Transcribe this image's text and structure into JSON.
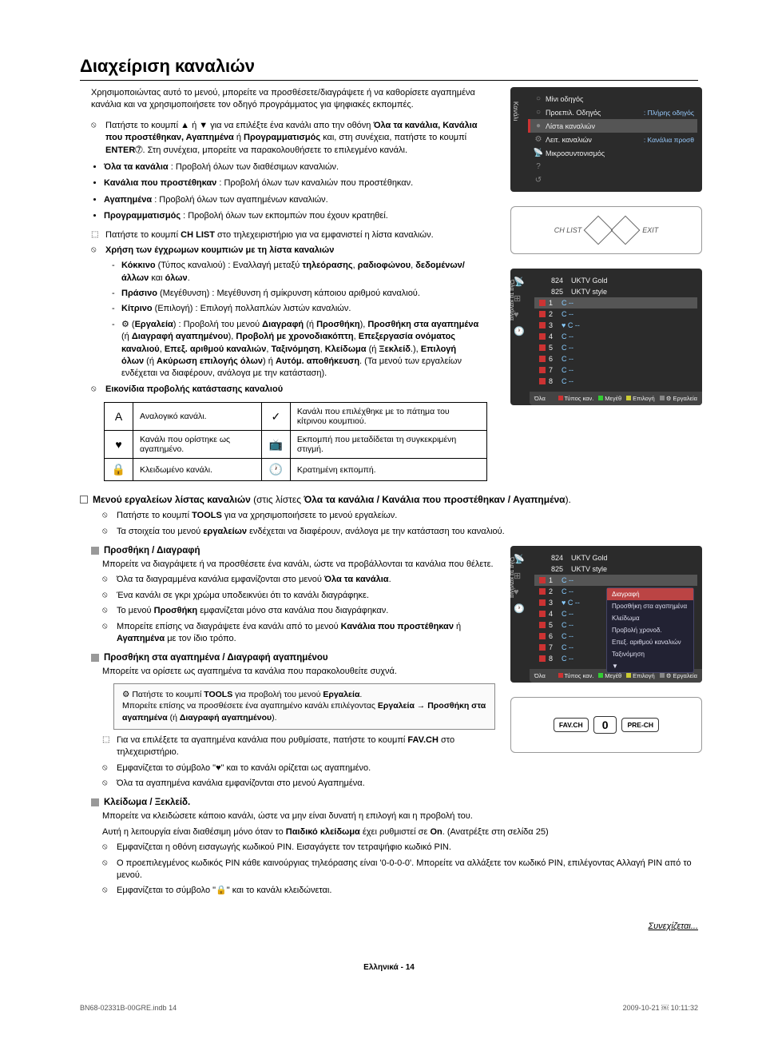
{
  "title": "Διαχείριση καναλιών",
  "intro": "Χρησιμοποιώντας αυτό το μενού, μπορείτε να προσθέσετε/διαγράψετε ή να καθορίσετε αγαπημένα κανάλια και να χρησιμοποιήσετε τον οδηγό προγράμματος για ψηφιακές εκπομπές.",
  "note1_pre": "Πατήστε το κουμπί ▲ ή ▼ για να επιλέξτε ένα κανάλι απο την οθόνη ",
  "note1_bold": "Όλα τα κανάλια, Κανάλια που προστέθηκαν, Αγαπημένα",
  "note1_mid": " ή ",
  "note1_bold2": "Προγραμματισμός",
  "note1_post": " και, στη συνέχεια, πατήστε το κουμπί ",
  "note1_bold3": "ENTER",
  "note1_end": "➆. Στη συνέχεια, μπορείτε να παρακολουθήσετε το επιλεγμένο κανάλι.",
  "bullets": [
    {
      "b": "Όλα τα κανάλια",
      "t": " : Προβολή όλων των διαθέσιμων καναλιών."
    },
    {
      "b": "Κανάλια που προστέθηκαν",
      "t": " : Προβολή όλων των καναλιών που προστέθηκαν."
    },
    {
      "b": "Αγαπημένα",
      "t": " : Προβολή όλων των αγαπημένων καναλιών."
    },
    {
      "b": "Προγραμματισμός",
      "t": " : Προβολή όλων των εκπομπών που έχουν κρατηθεί."
    }
  ],
  "chlist_note_pre": "Πατήστε το κουμπί ",
  "chlist_note_bold": "CH LIST",
  "chlist_note_post": " στο τηλεχειριστήριο για να εμφανιστεί η λίστα καναλιών.",
  "color_heading": "Χρήση των έγχρωμων κουμπιών με τη λίστα καναλιών",
  "colors": {
    "red": {
      "b": "Κόκκινο",
      "p": " (Τύπος καναλιού) : Εναλλαγή μεταξύ ",
      "b2": "τηλεόρασης",
      "m": ", ",
      "b3": "ραδιοφώνου",
      "m2": ", ",
      "b4": "δεδομένων/άλλων",
      "m3": " και ",
      "b5": "όλων",
      "e": "."
    },
    "green": {
      "b": "Πράσινο",
      "t": " (Μεγέθυνση) : Μεγέθυνση ή σμίκρυνση κάποιου αριθμού καναλιού."
    },
    "yellow": {
      "b": "Κίτρινο",
      "t": " (Επιλογή) : Επιλογή πολλαπλών λιστών καναλιών."
    },
    "tools": {
      "pre": "⚙ (",
      "b": "Εργαλεία",
      "m": ") : Προβολή του μενού ",
      "b2": "Διαγραφή",
      "m2": " (ή ",
      "b3": "Προσθήκη",
      "m3": "), ",
      "b4": "Προσθήκη στα αγαπημένα",
      "m4": " (ή ",
      "b5": "Διαγραφή αγαπημένου",
      "m5": "), ",
      "b6": "Προβολή με χρονοδιακόπτη",
      "m6": ", ",
      "b7": "Επεξεργασία ονόματος καναλιού",
      "m7": ", ",
      "b8": "Επεξ. αριθμού καναλιών",
      "m8": ", ",
      "b9": "Ταξινόμηση",
      "m9": ", ",
      "b10": "Κλείδωμα",
      "m10": " (ή ",
      "b11": "Ξεκλείδ",
      "m11": ".), ",
      "b12": "Επιλογή όλων",
      "m12": " (ή ",
      "b13": "Ακύρωση επιλογής όλων",
      "m13": ") ή ",
      "b14": "Αυτόμ. αποθήκευση",
      "e": ". (Τα μενού των εργαλείων ενδέχεται να διαφέρουν, ανάλογα με την κατάσταση)."
    }
  },
  "status_heading": "Εικονίδια προβολής κατάστασης καναλιού",
  "status_table": [
    {
      "i1": "A",
      "t1": "Αναλογικό κανάλι.",
      "i2": "✓",
      "t2": "Κανάλι που επιλέχθηκε με το πάτημα του κίτρινου κουμπιού."
    },
    {
      "i1": "♥",
      "t1": "Κανάλι που ορίστηκε ως αγαπημένο.",
      "i2": "📺",
      "t2": "Εκπομπή που μεταδίδεται τη συγκεκριμένη στιγμή."
    },
    {
      "i1": "🔒",
      "t1": "Κλειδωμένο κανάλι.",
      "i2": "🕐",
      "t2": "Κρατημένη εκπομπή."
    }
  ],
  "tools_menu_heading_pre": "Μενού εργαλείων λίστας καναλιών",
  "tools_menu_heading_post": " (στις λίστες ",
  "tools_menu_heading_bold": "Όλα τα κανάλια / Κανάλια που προστέθηκαν / Αγαπημένα",
  "tools_menu_heading_end": ").",
  "tools_note1_pre": "Πατήστε το κουμπί ",
  "tools_note1_bold": "TOOLS",
  "tools_note1_post": " για να χρησιμοποιήσετε το μενού εργαλείων.",
  "tools_note2_pre": "Τα στοιχεία του μενού ",
  "tools_note2_bold": "εργαλείων",
  "tools_note2_post": " ενδέχεται να διαφέρουν, ανάλογα με την κατάσταση του καναλιού.",
  "sec_add": {
    "title": "Προσθήκη / Διαγραφή",
    "body": "Μπορείτε να διαγράψετε ή να προσθέσετε ένα κανάλι, ώστε να προβάλλονται τα κανάλια που θέλετε.",
    "n1_pre": "Όλα τα διαγραμμένα κανάλια εμφανίζονται στο μενού ",
    "n1_bold": "Όλα τα κανάλια",
    "n1_post": ".",
    "n2": "Ένα κανάλι σε γκρι χρώμα υποδεικνύει ότι το κανάλι διαγράφηκε.",
    "n3_pre": "Το μενού ",
    "n3_bold": "Προσθήκη",
    "n3_post": " εμφανίζεται μόνο στα κανάλια που διαγράφηκαν.",
    "n4_pre": "Μπορείτε επίσης να διαγράψετε ένα κανάλι από το μενού ",
    "n4_bold": "Κανάλια που προστέθηκαν",
    "n4_mid": " ή ",
    "n4_bold2": "Αγαπημένα",
    "n4_post": " με τον ίδιο τρόπο."
  },
  "sec_fav": {
    "title": "Προσθήκη στα αγαπημένα / Διαγραφή αγαπημένου",
    "body": "Μπορείτε να ορίσετε ως αγαπημένα τα κανάλια που παρακολουθείτε συχνά.",
    "box_l1_pre": "Πατήστε το κουμπί ",
    "box_l1_bold": "TOOLS",
    "box_l1_mid": " για προβολή του μενού ",
    "box_l1_bold2": "Εργαλεία",
    "box_l1_post": ".",
    "box_l2_pre": "Μπορείτε επίσης να προσθέσετε ένα αγαπημένο κανάλι επιλέγοντας ",
    "box_l2_bold": "Εργαλεία → Προσθήκη στα αγαπημένα",
    "box_l2_mid": " (ή ",
    "box_l2_bold2": "Διαγραφή αγαπημένου",
    "box_l2_post": ").",
    "n1_pre": "Για να επιλέξετε τα αγαπημένα κανάλια που ρυθμίσατε, πατήστε το κουμπί ",
    "n1_bold": "FAV.CH",
    "n1_post": " στο τηλεχειριστήριο.",
    "n2": "Εμφανίζεται το σύμβολο \"♥\" και το κανάλι ορίζεται ως αγαπημένο.",
    "n3": "Όλα τα αγαπημένα κανάλια εμφανίζονται στο μενού Αγαπημένα."
  },
  "sec_lock": {
    "title": "Κλείδωμα / Ξεκλείδ.",
    "body": "Μπορείτε να κλειδώσετε κάποιο κανάλι, ώστε να μην είναι δυνατή η επιλογή και η προβολή του.",
    "body2_pre": "Αυτή η λειτουργία είναι διαθέσιμη μόνο όταν το ",
    "body2_bold": "Παιδικό κλείδωμα",
    "body2_mid": " έχει ρυθμιστεί σε ",
    "body2_bold2": "On",
    "body2_post": ". (Ανατρέξτε στη σελίδα 25)",
    "n1": "Εμφανίζεται η οθόνη εισαγωγής κωδικού PIN. Εισαγάγετε τον τετραψήφιο κωδικό PIN.",
    "n2": "Ο προεπιλεγμένος κωδικός PIN κάθε καινούργιας τηλεόρασης είναι '0-0-0-0'. Μπορείτε να αλλάξετε τον κωδικό PIN, επιλέγοντας Αλλαγή PIN από το μενού.",
    "n3": "Εμφανίζεται το σύμβολο \"🔒\" και το κανάλι κλειδώνεται."
  },
  "continued": "Συνεχίζεται...",
  "page_label": "Ελληνικά - 14",
  "footer_left": "BN68-02331B-00GRE.indb   14",
  "footer_right": "2009-10-21   ￼ 10:11:32",
  "panel1": {
    "sidebar": "Κανάλι",
    "rows": [
      {
        "icon": "○",
        "label": "Μίνι οδηγός",
        "right": ""
      },
      {
        "icon": "○",
        "label": "Προεπιλ. Οδηγός",
        "right": ": Πλήρης οδηγός"
      },
      {
        "icon": "●",
        "label": "Λίστa καναλιών",
        "right": "",
        "active": true
      },
      {
        "icon": "⚙",
        "label": "Λειτ. καναλιών",
        "right": ": Κανάλια προσθ"
      },
      {
        "icon": "📡",
        "label": "Μικροσυντονισμός",
        "right": ""
      },
      {
        "icon": "?",
        "label": "",
        "right": ""
      },
      {
        "icon": "↺",
        "label": "",
        "right": ""
      }
    ]
  },
  "remote1_labels": {
    "l": "CH LIST",
    "r": "EXIT"
  },
  "chpanel": {
    "sidebar": "Όλα τα κανάλια",
    "head": [
      {
        "num": "824",
        "name": "UKTV Gold"
      },
      {
        "num": "825",
        "name": "UKTV style"
      }
    ],
    "rows": [
      {
        "n": "1",
        "name": "C --",
        "hl": true
      },
      {
        "n": "2",
        "name": "C --"
      },
      {
        "n": "3",
        "name": "♥ C --"
      },
      {
        "n": "4",
        "name": "C --"
      },
      {
        "n": "5",
        "name": "C --"
      },
      {
        "n": "6",
        "name": "C --"
      },
      {
        "n": "7",
        "name": "C --"
      },
      {
        "n": "8",
        "name": "C --"
      }
    ],
    "footer_left": "Όλα",
    "footer": [
      {
        "c": "#c33",
        "t": "Τύπος καν."
      },
      {
        "c": "#3c3",
        "t": "Μεγέθ"
      },
      {
        "c": "#cc3",
        "t": "Επιλογή"
      },
      {
        "c": "#888",
        "t": "⚙ Εργαλεία"
      }
    ]
  },
  "chpanel2_tools_title": "Διαγραφή",
  "chpanel2_tools": [
    "Προσθήκη στα αγαπημένα",
    "Κλείδωμα",
    "Προβολή χρονοδ.",
    "Επεξ. αριθμού καναλιών",
    "Ταξινόμηση",
    "▼"
  ],
  "remote2": {
    "l": "FAV.CH",
    "m": "0",
    "r": "PRE-CH"
  }
}
